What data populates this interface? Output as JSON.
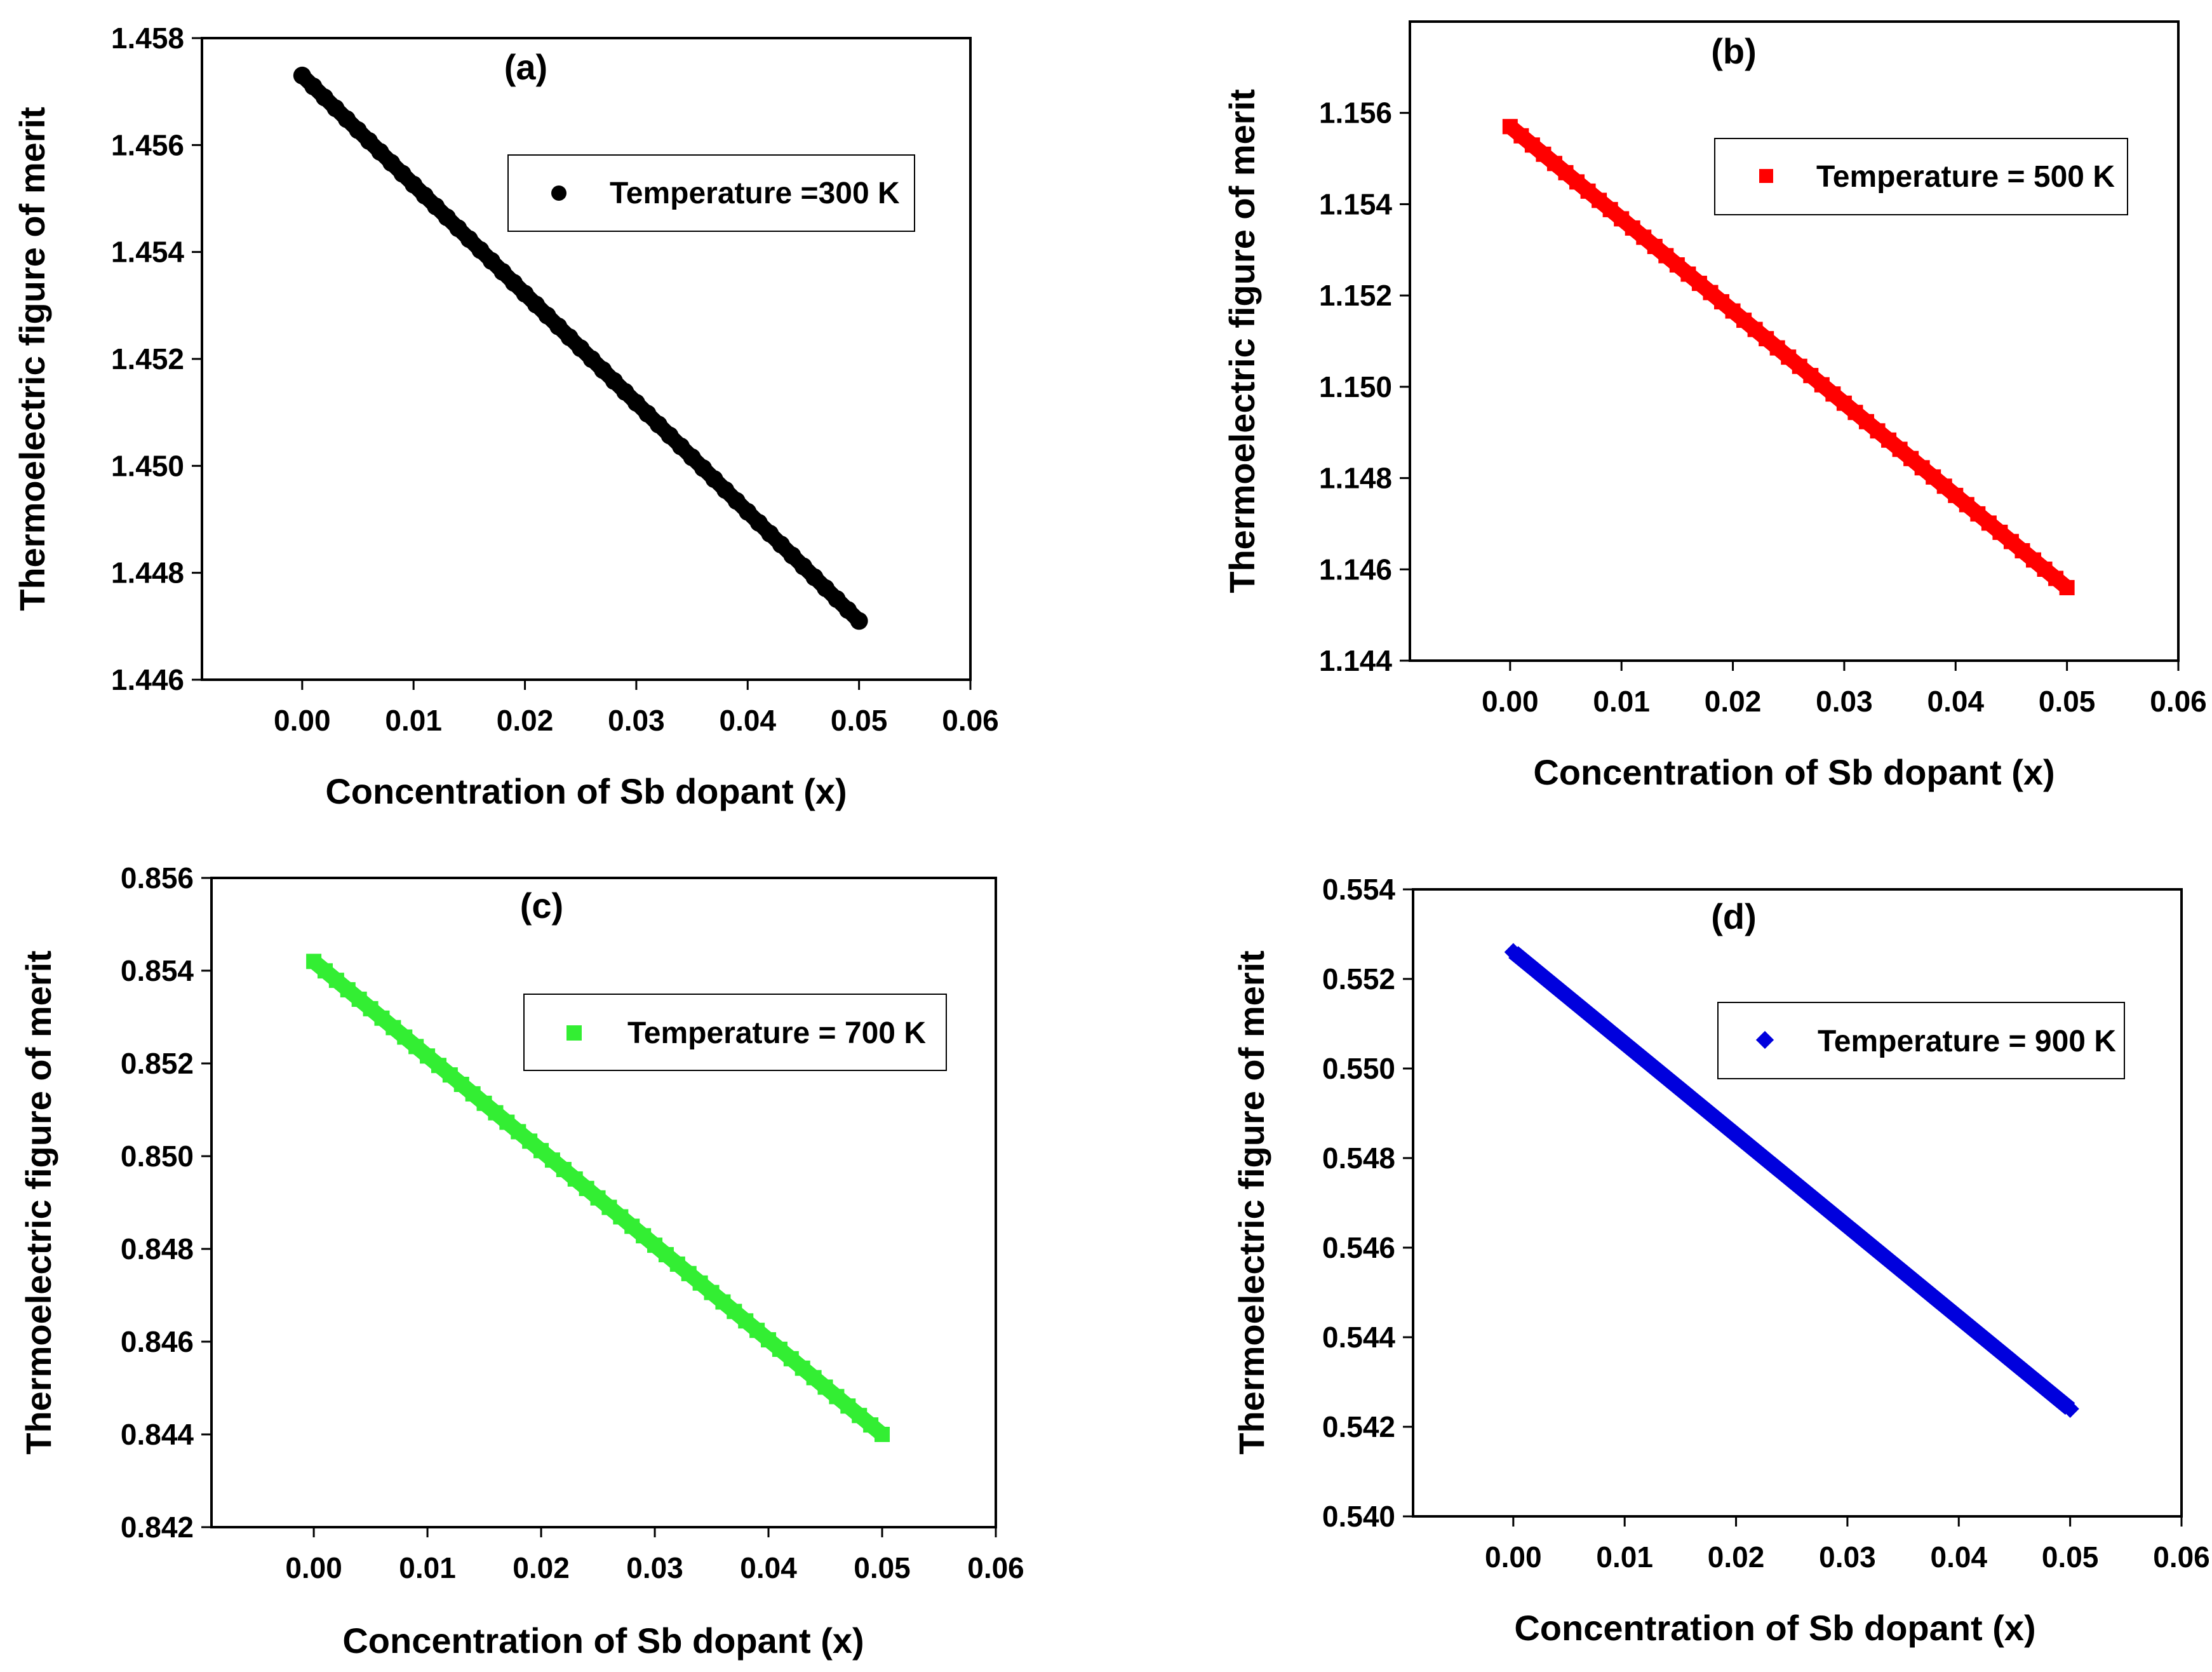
{
  "chart_data": [
    {
      "type": "scatter",
      "panel_label": "(a)",
      "xlabel": "Concentration of Sb dopant (x)",
      "ylabel": "Thermoelectric figure of merit",
      "xlim": [
        -0.009,
        0.06
      ],
      "ylim": [
        1.446,
        1.458
      ],
      "xticks": [
        "0.00",
        "0.01",
        "0.02",
        "0.03",
        "0.04",
        "0.05",
        "0.06"
      ],
      "yticks": [
        "1.446",
        "1.448",
        "1.450",
        "1.452",
        "1.454",
        "1.456",
        "1.458"
      ],
      "marker": "circle",
      "color": "#000000",
      "series": [
        {
          "name": "Temperature =300 K",
          "x_start": 0.0,
          "y_start": 1.4573,
          "x_end": 0.05,
          "y_end": 1.4471
        }
      ],
      "legend_position": "top-right"
    },
    {
      "type": "scatter",
      "panel_label": "(b)",
      "xlabel": "Concentration of Sb dopant (x)",
      "ylabel": "Thermoelectric figure of merit",
      "xlim": [
        -0.009,
        0.06
      ],
      "ylim": [
        1.144,
        1.158
      ],
      "xticks": [
        "0.00",
        "0.01",
        "0.02",
        "0.03",
        "0.04",
        "0.05",
        "0.06"
      ],
      "yticks": [
        "1.144",
        "1.146",
        "1.148",
        "1.150",
        "1.152",
        "1.154",
        "1.156"
      ],
      "marker": "square",
      "color": "#ff0000",
      "series": [
        {
          "name": "Temperature = 500 K",
          "x_start": 0.0,
          "y_start": 1.1557,
          "x_end": 0.05,
          "y_end": 1.1456
        }
      ],
      "legend_position": "top-right"
    },
    {
      "type": "scatter",
      "panel_label": "(c)",
      "xlabel": "Concentration of Sb dopant (x)",
      "ylabel": "Thermoelectric figure of merit",
      "xlim": [
        -0.009,
        0.06
      ],
      "ylim": [
        0.842,
        0.856
      ],
      "xticks": [
        "0.00",
        "0.01",
        "0.02",
        "0.03",
        "0.04",
        "0.05",
        "0.06"
      ],
      "yticks": [
        "0.842",
        "0.844",
        "0.846",
        "0.848",
        "0.850",
        "0.852",
        "0.854",
        "0.856"
      ],
      "marker": "square",
      "color": "#33ee33",
      "series": [
        {
          "name": "Temperature = 700 K",
          "x_start": 0.0,
          "y_start": 0.8542,
          "x_end": 0.05,
          "y_end": 0.844
        }
      ],
      "legend_position": "top-right"
    },
    {
      "type": "scatter",
      "panel_label": "(d)",
      "xlabel": "Concentration of Sb dopant (x)",
      "ylabel": "Thermoelectric figure of merit",
      "xlim": [
        -0.009,
        0.06
      ],
      "ylim": [
        0.54,
        0.554
      ],
      "xticks": [
        "0.00",
        "0.01",
        "0.02",
        "0.03",
        "0.04",
        "0.05",
        "0.06"
      ],
      "yticks": [
        "0.540",
        "0.542",
        "0.544",
        "0.546",
        "0.548",
        "0.550",
        "0.552",
        "0.554"
      ],
      "marker": "diamond",
      "color": "#0000dd",
      "series": [
        {
          "name": "Temperature = 900 K",
          "x_start": 0.0,
          "y_start": 0.5526,
          "x_end": 0.05,
          "y_end": 0.5424
        }
      ],
      "legend_position": "top-right"
    }
  ]
}
